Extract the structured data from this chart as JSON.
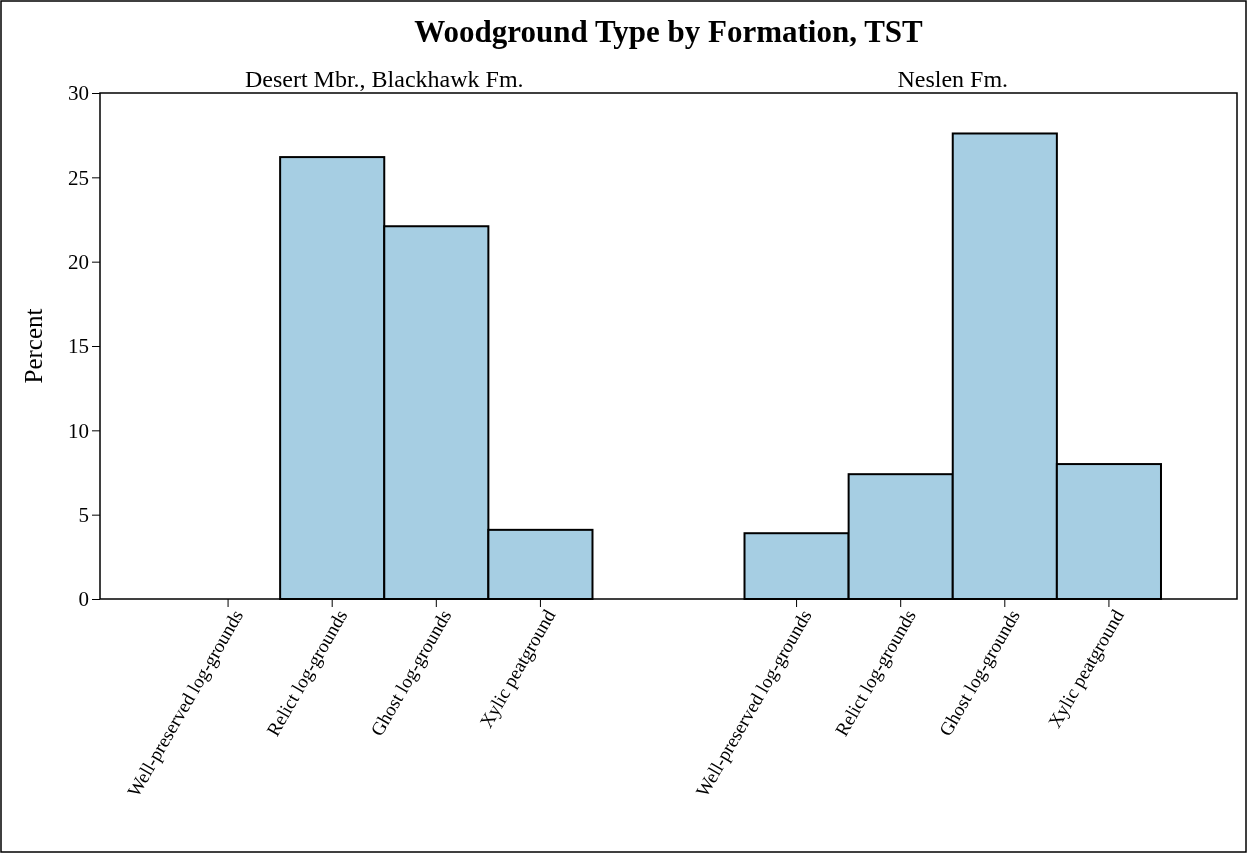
{
  "chart_data": [
    {
      "type": "bar",
      "title": "Woodground Type by Formation, TST",
      "subtitle": "Desert Mbr., Blackhawk Fm.",
      "ylabel": "Percent",
      "categories": [
        "Well-preserved log-grounds",
        "Relict log-grounds",
        "Ghost log-grounds",
        "Xylic peatground"
      ],
      "values": [
        0,
        26.2,
        22.1,
        4.1
      ],
      "color": "#a6cee3",
      "ylim": [
        0,
        30
      ],
      "yticks": [
        0,
        5,
        10,
        15,
        20,
        25,
        30
      ]
    },
    {
      "type": "bar",
      "subtitle": "Neslen Fm.",
      "categories": [
        "Well-preserved log-grounds",
        "Relict log-grounds",
        "Ghost log-grounds",
        "Xylic peatground"
      ],
      "values": [
        3.9,
        7.4,
        27.6,
        8.0
      ],
      "color": "#a6cee3",
      "ylim": [
        0,
        30
      ],
      "tick_labels": "x"
    }
  ]
}
